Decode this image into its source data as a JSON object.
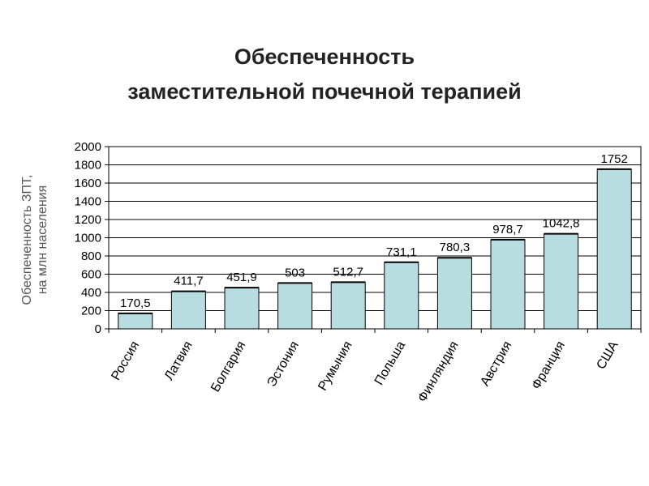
{
  "title_line1": "Обеспеченность",
  "title_line2": "заместительной почечной терапией",
  "ylabel_line1": "Обеспеченность  ЗПТ,",
  "ylabel_line2": "на млн населения",
  "colors": {
    "bar_fill": "#b8dde1",
    "bar_stroke": "#000000",
    "grid": "#000000"
  },
  "chart_data": {
    "type": "bar",
    "title": "Обеспеченность заместительной почечной терапией",
    "ylabel": "Обеспеченность  ЗПТ, на млн населения",
    "xlabel": "",
    "categories": [
      "Россия",
      "Латвия",
      "Болгария",
      "Эстония",
      "Румыния",
      "Польша",
      "Финляндия",
      "Австрия",
      "Франция",
      "США"
    ],
    "values": [
      170.5,
      411.7,
      451.9,
      503,
      512.7,
      731.1,
      780.3,
      978.7,
      1042.8,
      1752
    ],
    "data_labels": [
      "170,5",
      "411,7",
      "451,9",
      "503",
      "512,7",
      "731,1",
      "780,3",
      "978,7",
      "1042,8",
      "1752"
    ],
    "ylim": [
      0,
      2000
    ],
    "yticks": [
      0,
      200,
      400,
      600,
      800,
      1000,
      1200,
      1400,
      1600,
      1800,
      2000
    ],
    "grid": true,
    "legend": "none"
  }
}
